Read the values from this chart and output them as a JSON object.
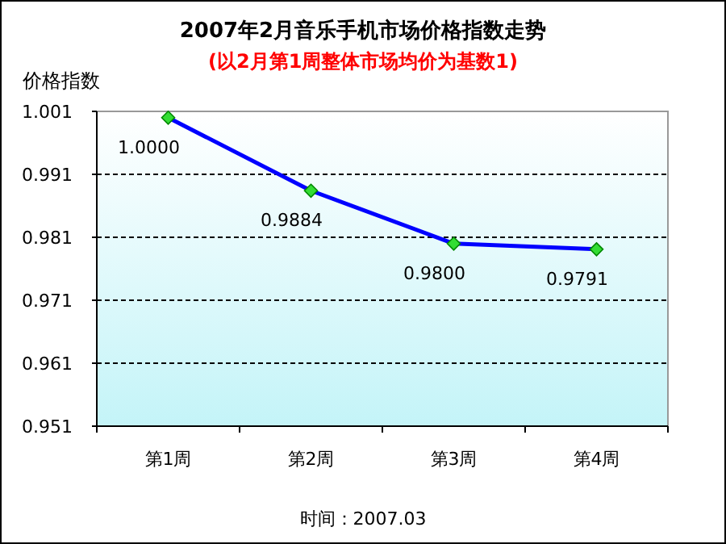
{
  "chart_data": {
    "type": "line",
    "title": "2007年2月音乐手机市场价格指数走势",
    "subtitle": "(以2月第1周整体市场均价为基数1)",
    "ylabel": "价格指数",
    "categories": [
      "第1周",
      "第2周",
      "第3周",
      "第4周"
    ],
    "series": [
      {
        "color": "#0000ff",
        "values": [
          1.0,
          0.9884,
          0.98,
          0.9791
        ]
      }
    ],
    "ylim": [
      0.951,
      1.001
    ],
    "yticks": [
      {
        "value": 0.951,
        "label": "0.951"
      },
      {
        "value": 0.961,
        "label": "0.961"
      },
      {
        "value": 0.971,
        "label": "0.971"
      },
      {
        "value": 0.981,
        "label": "0.981"
      },
      {
        "value": 0.991,
        "label": "0.991"
      },
      {
        "value": 1.001,
        "label": "1.001"
      }
    ],
    "value_labels": [
      "1.0000",
      "0.9884",
      "0.9800",
      "0.9791"
    ],
    "grid": "y",
    "marker": "diamond",
    "line_style": "solid",
    "annotations": [
      "时间：2007.03"
    ]
  }
}
